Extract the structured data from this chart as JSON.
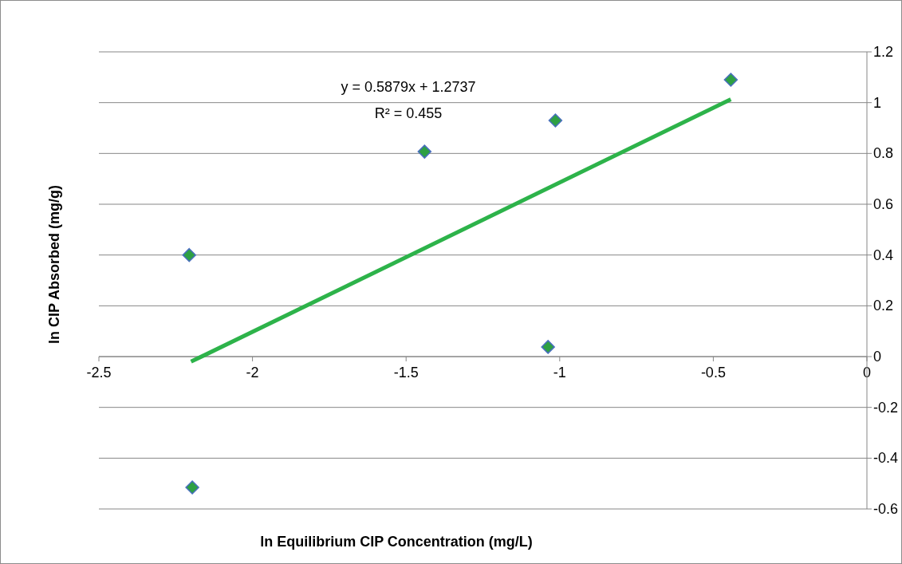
{
  "chart_data": {
    "type": "scatter",
    "xlabel": "ln Equilibrium CIP Concentration (mg/L)",
    "ylabel": "ln CIP Absorbed (mg/g)",
    "xlim": [
      -2.5,
      0
    ],
    "xticks": [
      -2.5,
      -2,
      -1.5,
      -1,
      -0.5,
      0
    ],
    "ylim": [
      -0.6,
      1.2
    ],
    "yticks": [
      -0.6,
      -0.4,
      -0.2,
      0,
      0.2,
      0.4,
      0.6,
      0.8,
      1,
      1.2
    ],
    "grid": "y",
    "annotations": [
      "y = 0.5879x + 1.2737",
      "R² = 0.455"
    ],
    "series": [
      {
        "marker": "diamond",
        "color": "#2ea043",
        "x": [
          -2.206,
          -2.196,
          -1.44,
          -1.014,
          -1.038,
          -0.443
        ],
        "values": [
          0.4,
          -0.515,
          0.807,
          0.93,
          0.038,
          1.09
        ]
      },
      {
        "type": "line",
        "marker": "none",
        "color": "#2db34a",
        "x": [
          -2.2,
          -0.443
        ],
        "values": [
          -0.02,
          1.013
        ]
      }
    ]
  }
}
